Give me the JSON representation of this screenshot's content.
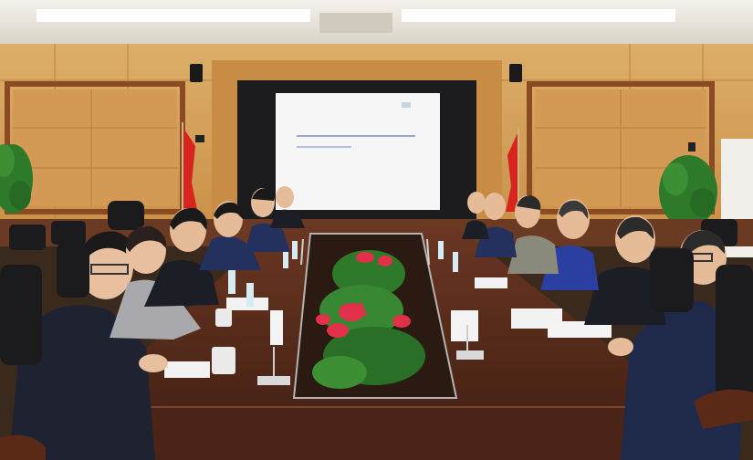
{
  "scene": {
    "description_alt": "",
    "screen_text_line_1": "",
    "screen_text_line_2": ""
  },
  "colors": {
    "ceiling": "#e9e6df",
    "wall_wood": "#d8a35e",
    "wall_wood_dark": "#b07a3a",
    "frame_wood": "#8a4a22",
    "screen_bezel": "#1c1c1e",
    "screen": "#f6f6f6",
    "table": "#5a2e1a",
    "table_shine": "#7a4530",
    "flag_red": "#d8241f",
    "plant_green": "#2f7a2a",
    "anthurium_red": "#e0304a",
    "suit_dark": "#1f2230",
    "suit_navy": "#24305e"
  },
  "icons": [
    "flag-icon",
    "speaker-icon",
    "microphone-icon",
    "plant-icon"
  ]
}
